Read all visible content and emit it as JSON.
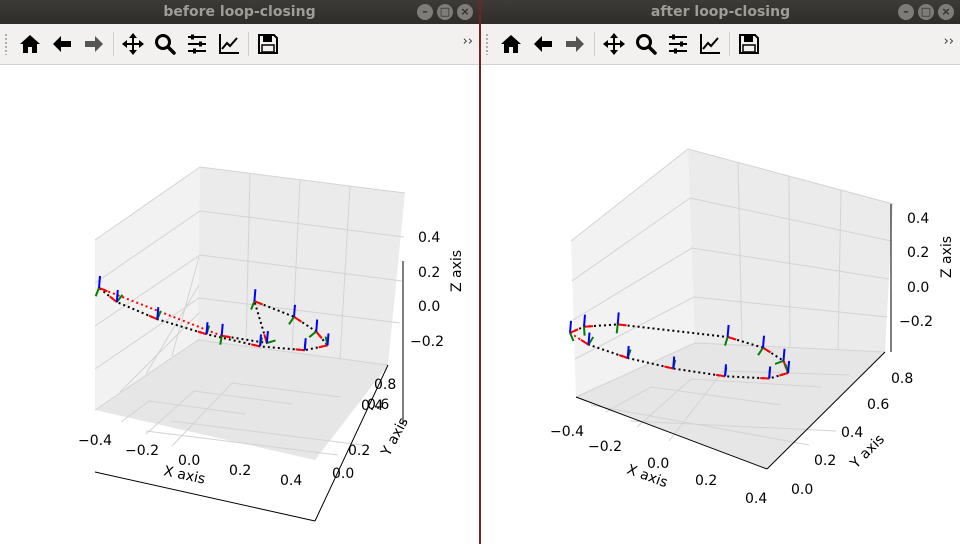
{
  "windows": [
    {
      "title": "before loop-closing",
      "toolbar": {
        "icons": [
          "home-icon",
          "back-arrow-icon",
          "forward-arrow-icon",
          "pan-icon",
          "zoom-icon",
          "configure-subplots-icon",
          "edit-axes-icon",
          "save-icon"
        ],
        "overflow": "››"
      }
    },
    {
      "title": "after loop-closing",
      "toolbar": {
        "icons": [
          "home-icon",
          "back-arrow-icon",
          "forward-arrow-icon",
          "pan-icon",
          "zoom-icon",
          "configure-subplots-icon",
          "edit-axes-icon",
          "save-icon"
        ],
        "overflow": "››"
      }
    }
  ],
  "colors": {
    "trajectory": "#000000",
    "loop_edge": "#ff0000",
    "frame_x_axis": "#ff0000",
    "frame_y_axis": "#008000",
    "frame_z_axis": "#0000ff"
  },
  "chart_data": [
    {
      "type": "scatter",
      "projection": "3d",
      "title": "",
      "xlabel": "X axis",
      "ylabel": "Y axis",
      "zlabel": "Z axis",
      "x_ticks": [
        "−0.4",
        "−0.2",
        "0.0",
        "0.2",
        "0.4"
      ],
      "y_ticks": [
        "0.0",
        "0.2",
        "0.4",
        "0.6",
        "0.8"
      ],
      "z_ticks": [
        "−0.2",
        "0.0",
        "0.2",
        "0.4"
      ],
      "xlim": [
        -0.45,
        0.45
      ],
      "ylim": [
        0.0,
        0.85
      ],
      "zlim": [
        -0.28,
        0.56
      ],
      "grid": true,
      "poses": {
        "x": [
          0.32,
          0.43,
          0.44,
          0.4,
          0.25,
          0.05,
          -0.15,
          -0.3,
          -0.4,
          -0.41,
          -0.05,
          0.12
        ],
        "y": [
          0.64,
          0.52,
          0.34,
          0.15,
          0.03,
          0.0,
          0.05,
          0.17,
          0.32,
          0.46,
          0.13,
          0.09
        ],
        "z": [
          0.08,
          0.05,
          0.03,
          0.01,
          0.0,
          0.0,
          0.02,
          0.04,
          0.07,
          0.1,
          0.0,
          0.0
        ]
      },
      "loop_edge": {
        "from": 9,
        "to": 10
      }
    },
    {
      "type": "scatter",
      "projection": "3d",
      "title": "",
      "xlabel": "X axis",
      "ylabel": "Y axis",
      "zlabel": "Z axis",
      "x_ticks": [
        "−0.4",
        "−0.2",
        "0.0",
        "0.2",
        "0.4"
      ],
      "y_ticks": [
        "0.0",
        "0.2",
        "0.4",
        "0.6",
        "0.8"
      ],
      "z_ticks": [
        "−0.2",
        "0.0",
        "0.2",
        "0.4"
      ],
      "xlim": [
        -0.45,
        0.45
      ],
      "ylim": [
        0.0,
        0.85
      ],
      "zlim": [
        -0.3,
        0.48
      ],
      "grid": true,
      "poses": {
        "x": [
          0.33,
          0.43,
          0.44,
          0.38,
          0.25,
          0.05,
          -0.15,
          -0.3,
          -0.4,
          -0.41,
          -0.3,
          -0.12
        ],
        "y": [
          0.68,
          0.56,
          0.37,
          0.17,
          0.04,
          0.0,
          0.04,
          0.14,
          0.3,
          0.47,
          0.6,
          0.7
        ],
        "z": [
          0.0,
          0.0,
          0.0,
          0.0,
          0.0,
          0.0,
          0.0,
          0.0,
          0.0,
          0.0,
          0.0,
          0.0
        ]
      },
      "loop_edge": {
        "from": 8,
        "to": 9
      }
    }
  ]
}
